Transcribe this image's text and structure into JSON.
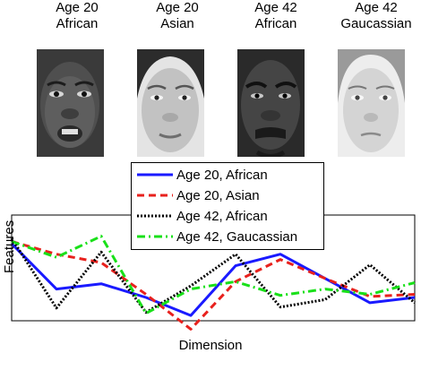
{
  "faces": [
    {
      "line1": "Age 20",
      "line2": "African"
    },
    {
      "line1": "Age 20",
      "line2": "Asian"
    },
    {
      "line1": "Age 42",
      "line2": "African"
    },
    {
      "line1": "Age 42",
      "line2": "Gaucassian"
    }
  ],
  "chart_data": {
    "type": "line",
    "title": "",
    "xlabel": "Dimension",
    "ylabel": "Features",
    "grid": false,
    "legend": "top",
    "x": [
      0,
      1,
      2,
      3,
      4,
      5,
      6,
      7,
      8,
      9
    ],
    "ylim": [
      0,
      1
    ],
    "series": [
      {
        "name": "Age 20, African",
        "color": "#1a1aff",
        "style": "solid",
        "values": [
          0.73,
          0.3,
          0.35,
          0.22,
          0.05,
          0.52,
          0.63,
          0.4,
          0.17,
          0.22
        ]
      },
      {
        "name": "Age 20, Asian",
        "color": "#e8211d",
        "style": "dashed",
        "values": [
          0.75,
          0.63,
          0.55,
          0.25,
          -0.08,
          0.37,
          0.58,
          0.4,
          0.23,
          0.25
        ]
      },
      {
        "name": "Age 42, African",
        "color": "#000000",
        "style": "dotted",
        "values": [
          0.78,
          0.12,
          0.65,
          0.08,
          0.33,
          0.63,
          0.13,
          0.2,
          0.53,
          0.17
        ]
      },
      {
        "name": "Age 42, Gaucassian",
        "color": "#19e019",
        "style": "dashdot",
        "values": [
          0.75,
          0.6,
          0.8,
          0.07,
          0.3,
          0.37,
          0.24,
          0.3,
          0.25,
          0.36
        ]
      }
    ]
  }
}
